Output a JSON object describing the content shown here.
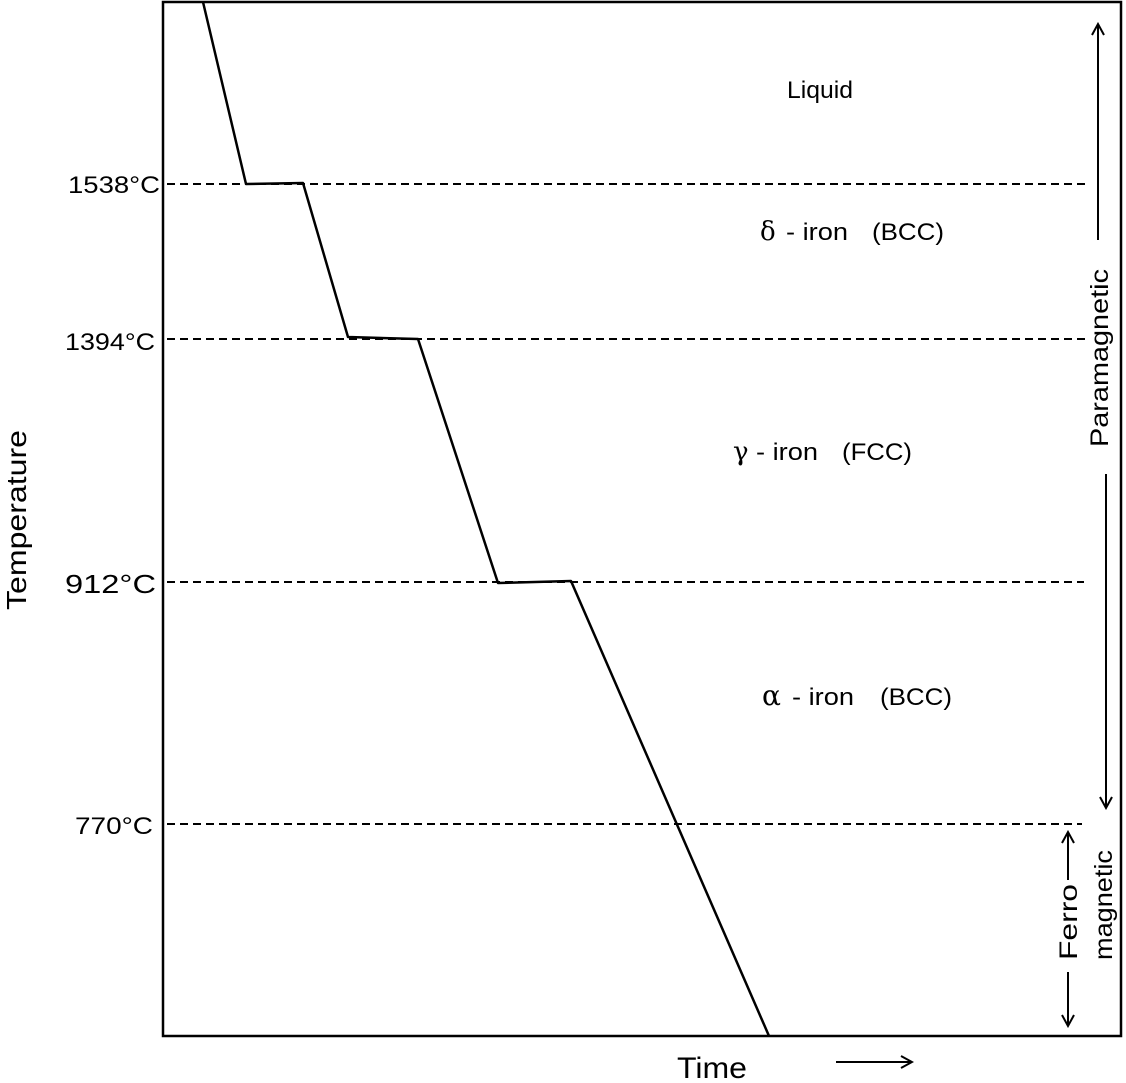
{
  "title": "",
  "axes": {
    "y_label": "Temperature",
    "x_label": "Time"
  },
  "temperature_levels": [
    {
      "label": "1538°C",
      "value": 1538
    },
    {
      "label": "1394°C",
      "value": 1394
    },
    {
      "label": "912°C",
      "value": 912
    },
    {
      "label": "770°C",
      "value": 770
    }
  ],
  "phases": [
    {
      "symbol": "",
      "name": "Liquid",
      "structure": ""
    },
    {
      "symbol": "δ",
      "name": "- iron",
      "structure": "(BCC)"
    },
    {
      "symbol": "γ",
      "name": "- iron",
      "structure": "(FCC)"
    },
    {
      "symbol": "α",
      "name": "- iron",
      "structure": "(BCC)"
    }
  ],
  "magnetic_regions": {
    "paramagnetic": "Paramagnetic",
    "ferro_line1": "Ferro",
    "ferro_line2": "magnetic"
  },
  "colors": {
    "line": "#000000",
    "background": "#ffffff"
  }
}
